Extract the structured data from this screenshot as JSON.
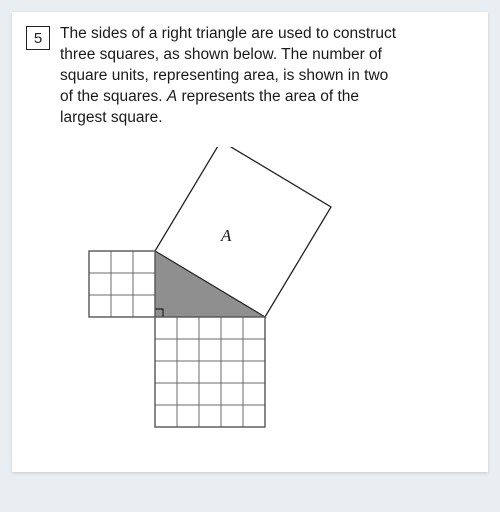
{
  "question": {
    "number": "5",
    "text_line1": "The sides of a right triangle are used to construct",
    "text_line2": "three squares, as shown below. The number of",
    "text_line3": "square units, representing area, is shown in two",
    "text_line4": "of the squares. ",
    "text_italic": "A",
    "text_line4b": " represents the area of the",
    "text_line5": "largest square."
  },
  "diagram": {
    "unit": 22,
    "small_square_units": 3,
    "medium_square_units": 5,
    "colors": {
      "grid_stroke": "#555555",
      "grid_stroke_light": "#6b6b6b",
      "triangle_fill": "#8f8f8f",
      "big_square_fill": "#ffffff",
      "big_square_stroke": "#222222",
      "right_angle_stroke": "#222222",
      "label_color": "#1a1a1a"
    },
    "label_A": "A",
    "label_fontsize": 17
  }
}
